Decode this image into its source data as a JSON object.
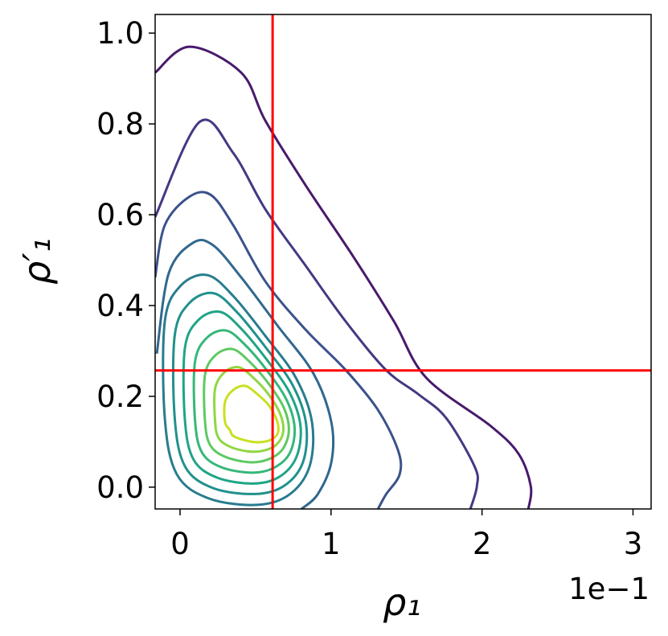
{
  "chart_data": {
    "type": "contour",
    "xlabel": "ρ₁",
    "ylabel": "ρ′₁",
    "x_offset_label": "1e−1",
    "xlim": [
      -0.165,
      3.12
    ],
    "ylim": [
      -0.048,
      1.041
    ],
    "xticks": [
      0,
      1,
      2,
      3
    ],
    "yticks": [
      {
        "value": 0,
        "label": "0.0"
      },
      {
        "value": 0.2,
        "label": "0.2"
      },
      {
        "value": 0.4,
        "label": "0.4"
      },
      {
        "value": 0.6,
        "label": "0.6"
      },
      {
        "value": 0.8,
        "label": "0.8"
      },
      {
        "value": 1,
        "label": "1.0"
      }
    ],
    "series": [
      {
        "color": "#481a6c",
        "closed": false,
        "x": [
          -0.165,
          0.064,
          0.405,
          0.565,
          0.831,
          1.151,
          1.417,
          1.63,
          2.056,
          2.243,
          2.323,
          2.307
        ],
        "y": [
          0.913,
          0.97,
          0.913,
          0.807,
          0.665,
          0.506,
          0.365,
          0.241,
          0.135,
          0.073,
          0.002,
          -0.048
        ]
      },
      {
        "color": "#443983",
        "closed": false,
        "x": [
          -0.165,
          0.128,
          0.352,
          0.565,
          0.831,
          1.097,
          1.364,
          1.577,
          1.763,
          1.95,
          1.966,
          1.923
        ],
        "y": [
          0.595,
          0.804,
          0.736,
          0.612,
          0.488,
          0.365,
          0.258,
          0.205,
          0.152,
          0.046,
          0.002,
          -0.048
        ]
      },
      {
        "color": "#3b528b",
        "closed": false,
        "x": [
          -0.165,
          -0.101,
          0.059,
          0.202,
          0.352,
          0.565,
          0.831,
          1.097,
          1.311,
          1.444,
          1.454,
          1.364,
          1.311
        ],
        "y": [
          0.462,
          0.577,
          0.639,
          0.644,
          0.577,
          0.453,
          0.347,
          0.258,
          0.17,
          0.081,
          0.028,
          -0.016,
          -0.048
        ]
      },
      {
        "color": "#31688e",
        "closed": false,
        "x": [
          -0.154,
          -0.075,
          0.085,
          0.218,
          0.405,
          0.645,
          0.884,
          1.002,
          1.002,
          0.911,
          0.804
        ],
        "y": [
          0.294,
          0.471,
          0.538,
          0.533,
          0.462,
          0.356,
          0.25,
          0.143,
          0.055,
          -0.016,
          -0.048
        ]
      },
      {
        "color": "#287c8e",
        "closed": true,
        "x": [
          -0.101,
          -0.101,
          0.005,
          0.181,
          0.352,
          0.565,
          0.767,
          0.874,
          0.858,
          0.725,
          0.511,
          0.192,
          -0.021
        ],
        "y": [
          0.152,
          0.365,
          0.444,
          0.467,
          0.421,
          0.333,
          0.241,
          0.143,
          0.046,
          -0.016,
          -0.039,
          -0.025,
          0.028
        ]
      },
      {
        "color": "#21918c",
        "closed": true,
        "x": [
          -0.035,
          -0.035,
          0.063,
          0.223,
          0.378,
          0.569,
          0.747,
          0.835,
          0.814,
          0.689,
          0.498,
          0.218,
          0.034
        ],
        "y": [
          0.151,
          0.335,
          0.406,
          0.427,
          0.385,
          0.307,
          0.224,
          0.139,
          0.055,
          0.003,
          -0.015,
          -0.002,
          0.045
        ]
      },
      {
        "color": "#20a486",
        "closed": true,
        "x": [
          0.032,
          0.032,
          0.121,
          0.265,
          0.405,
          0.574,
          0.726,
          0.798,
          0.769,
          0.654,
          0.485,
          0.245,
          0.089
        ],
        "y": [
          0.149,
          0.306,
          0.368,
          0.386,
          0.349,
          0.281,
          0.208,
          0.134,
          0.065,
          0.022,
          0.008,
          0.021,
          0.061
        ]
      },
      {
        "color": "#35b779",
        "closed": true,
        "x": [
          0.099,
          0.099,
          0.178,
          0.306,
          0.432,
          0.578,
          0.706,
          0.759,
          0.725,
          0.618,
          0.472,
          0.272,
          0.144
        ],
        "y": [
          0.148,
          0.276,
          0.329,
          0.345,
          0.313,
          0.256,
          0.192,
          0.13,
          0.074,
          0.042,
          0.032,
          0.044,
          0.077
        ]
      },
      {
        "color": "#5ec962",
        "closed": true,
        "x": [
          0.165,
          0.165,
          0.236,
          0.348,
          0.458,
          0.582,
          0.686,
          0.721,
          0.68,
          0.582,
          0.458,
          0.298,
          0.199
        ],
        "y": [
          0.146,
          0.247,
          0.291,
          0.304,
          0.277,
          0.23,
          0.176,
          0.126,
          0.084,
          0.061,
          0.055,
          0.067,
          0.093
        ]
      },
      {
        "color": "#90d743",
        "closed": true,
        "x": [
          0.232,
          0.232,
          0.294,
          0.39,
          0.485,
          0.587,
          0.665,
          0.683,
          0.636,
          0.547,
          0.445,
          0.325,
          0.254
        ],
        "y": [
          0.145,
          0.217,
          0.253,
          0.264,
          0.241,
          0.204,
          0.16,
          0.121,
          0.093,
          0.08,
          0.079,
          0.09,
          0.109
        ]
      },
      {
        "color": "#c8e020",
        "closed": true,
        "x": [
          0.298,
          0.298,
          0.352,
          0.432,
          0.511,
          0.591,
          0.645,
          0.645,
          0.591,
          0.511,
          0.432,
          0.352,
          0.33
        ],
        "y": [
          0.143,
          0.188,
          0.214,
          0.223,
          0.205,
          0.179,
          0.143,
          0.117,
          0.103,
          0.099,
          0.103,
          0.113,
          0.126
        ]
      }
    ],
    "vlines": [
      {
        "value": 0.613,
        "color": "#ff0000"
      }
    ],
    "hlines": [
      {
        "value": 0.257,
        "color": "#ff0000"
      }
    ]
  }
}
